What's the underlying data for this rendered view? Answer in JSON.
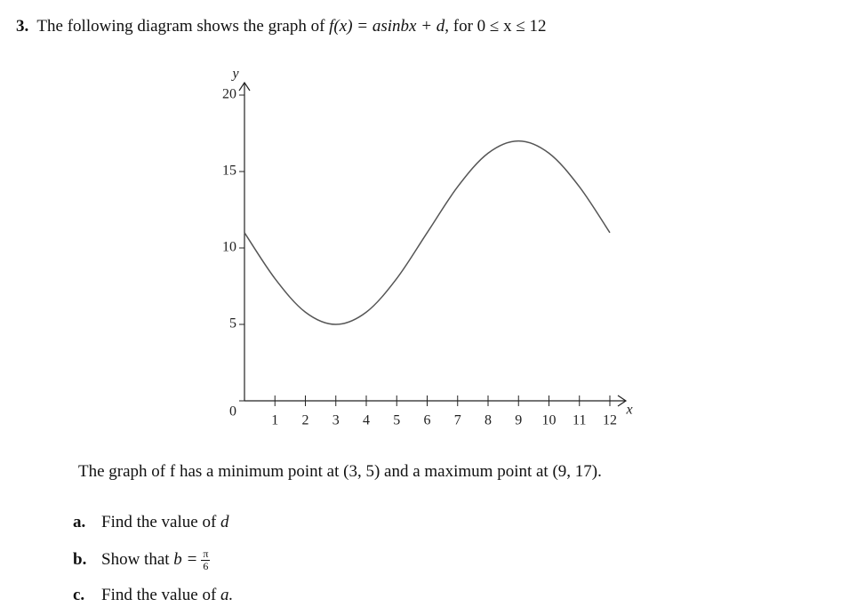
{
  "question": {
    "number": "3.",
    "intro": "The following diagram shows the graph of",
    "formula": "f(x) = asinbx + d",
    "domain": ", for 0 ≤ x ≤ 12"
  },
  "chart_data": {
    "type": "line",
    "x_label": "x",
    "y_label": "y",
    "x": [
      0,
      1,
      2,
      3,
      4,
      5,
      6,
      7,
      8,
      9,
      10,
      11,
      12
    ],
    "values": [
      11,
      8,
      5.8,
      5,
      5.8,
      8,
      11,
      14,
      16.2,
      17,
      16.2,
      14,
      11
    ],
    "color": "#555555",
    "xlim": [
      0,
      12
    ],
    "ylim": [
      0,
      20
    ],
    "xticks": [
      1,
      2,
      3,
      4,
      5,
      6,
      7,
      8,
      9,
      10,
      11,
      12
    ],
    "yticks": [
      0,
      5,
      10,
      15,
      20
    ]
  },
  "statement": "The graph of f has a minimum point at (3, 5) and a maximum point at (9, 17).",
  "parts": [
    {
      "label": "a.",
      "text": "Find the value of",
      "math": "d"
    },
    {
      "label": "b.",
      "text": "Show that",
      "math": "b =",
      "numerator": "π",
      "denominator": "6"
    },
    {
      "label": "c.",
      "text": "Find the value of",
      "math": "a."
    }
  ]
}
